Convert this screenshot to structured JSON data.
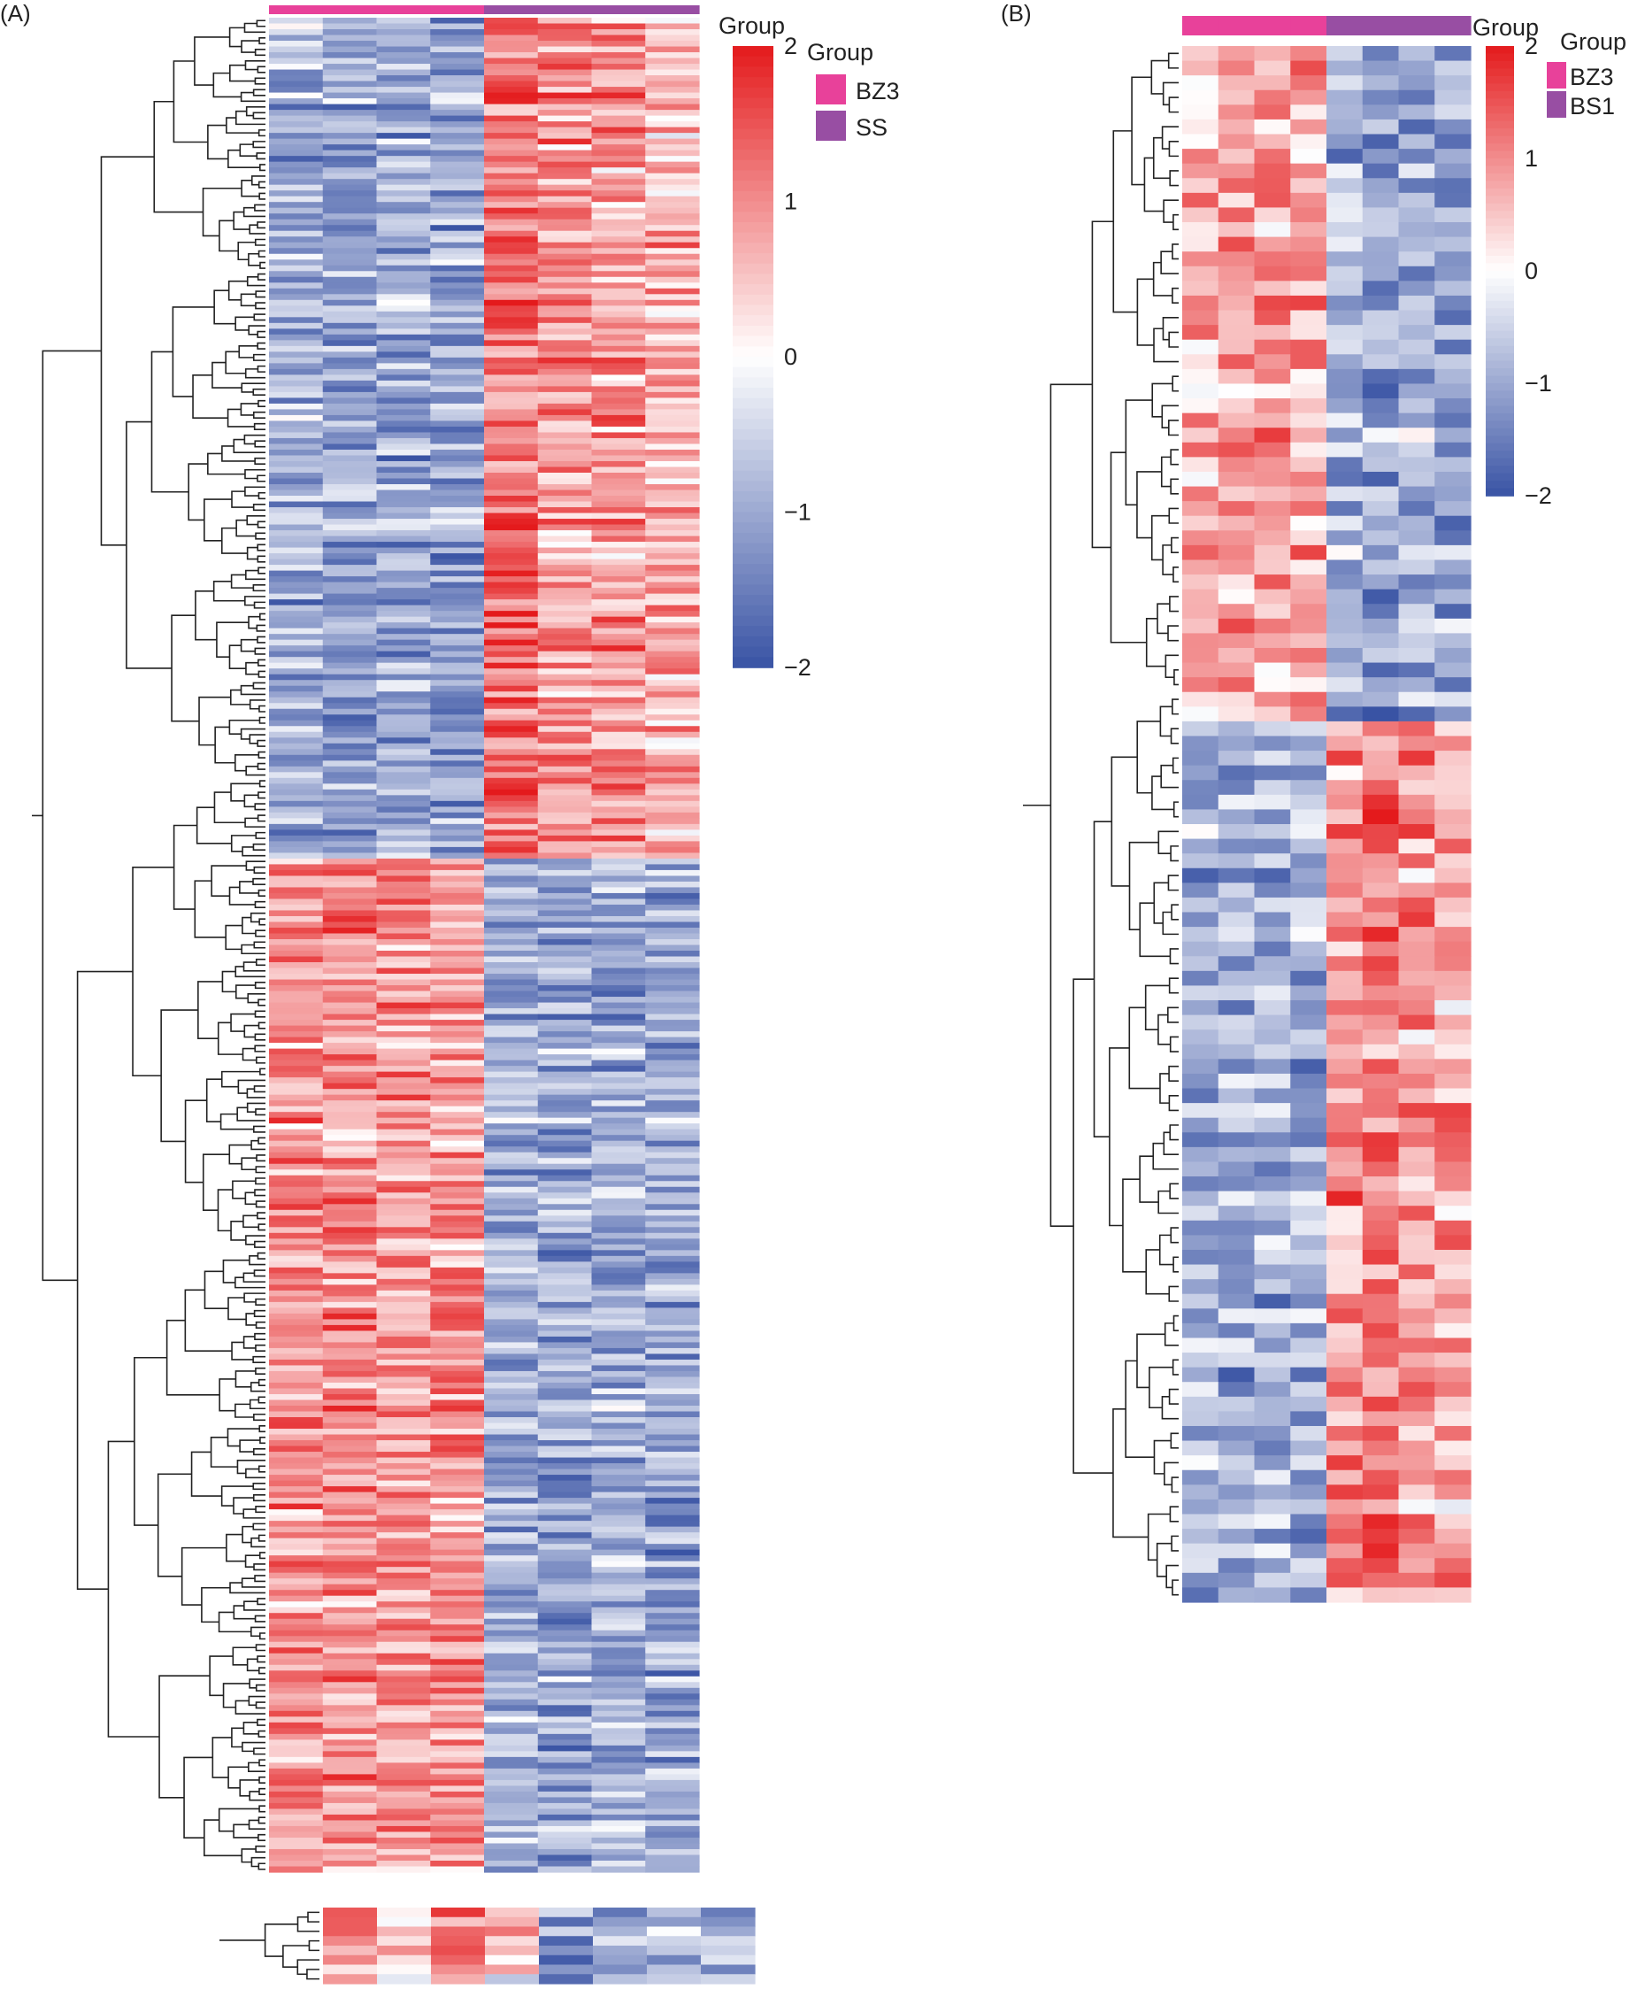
{
  "chart_data": [
    {
      "panel_label": "(A)",
      "type": "heatmap",
      "column_groups": [
        "BZ3",
        "BZ3",
        "BZ3",
        "BZ3",
        "SS",
        "SS",
        "SS",
        "SS"
      ],
      "annotation_title": "Group",
      "legend": {
        "title": "Group",
        "entries": [
          {
            "name": "BZ3",
            "color": "#e8419a"
          },
          {
            "name": "SS",
            "color": "#984ea3"
          }
        ]
      },
      "colorbar": {
        "min": -2,
        "max": 2,
        "ticks": [
          "2",
          "1",
          "0",
          "−1",
          "−2"
        ],
        "low_color": "#3953a4",
        "mid_color": "#ffffff",
        "high_color": "#e41a1c"
      },
      "row_blocks": [
        {
          "rows": 146,
          "pattern": [
            -0.9,
            -1.0,
            -1.0,
            -1.0,
            1.2,
            0.9,
            0.9,
            0.7
          ]
        },
        {
          "rows": 176,
          "pattern": [
            0.9,
            1.0,
            0.9,
            0.9,
            -0.9,
            -1.0,
            -0.9,
            -1.0
          ]
        }
      ],
      "extra_strip": {
        "rows": 8,
        "pattern": [
          1.0,
          0.6,
          1.2,
          0.3,
          -1.0,
          -0.8,
          -0.5,
          -0.7
        ]
      },
      "seed": 7
    },
    {
      "panel_label": "(B)",
      "type": "heatmap",
      "column_groups": [
        "BZ3",
        "BZ3",
        "BZ3",
        "BZ3",
        "BS1",
        "BS1",
        "BS1",
        "BS1"
      ],
      "annotation_title": "Group",
      "legend": {
        "title": "Group",
        "entries": [
          {
            "name": "BZ3",
            "color": "#e8419a"
          },
          {
            "name": "BS1",
            "color": "#984ea3"
          }
        ]
      },
      "colorbar": {
        "min": -2,
        "max": 2,
        "ticks": [
          "2",
          "1",
          "0",
          "−1",
          "−2"
        ],
        "low_color": "#3953a4",
        "mid_color": "#ffffff",
        "high_color": "#e41a1c"
      },
      "row_blocks": [
        {
          "rows": 46,
          "pattern": [
            0.8,
            0.9,
            0.8,
            0.9,
            -0.8,
            -1.0,
            -0.9,
            -1.0
          ]
        },
        {
          "rows": 60,
          "pattern": [
            -0.9,
            -1.0,
            -0.9,
            -1.0,
            0.9,
            1.1,
            0.8,
            0.7
          ]
        }
      ],
      "seed": 23
    }
  ]
}
